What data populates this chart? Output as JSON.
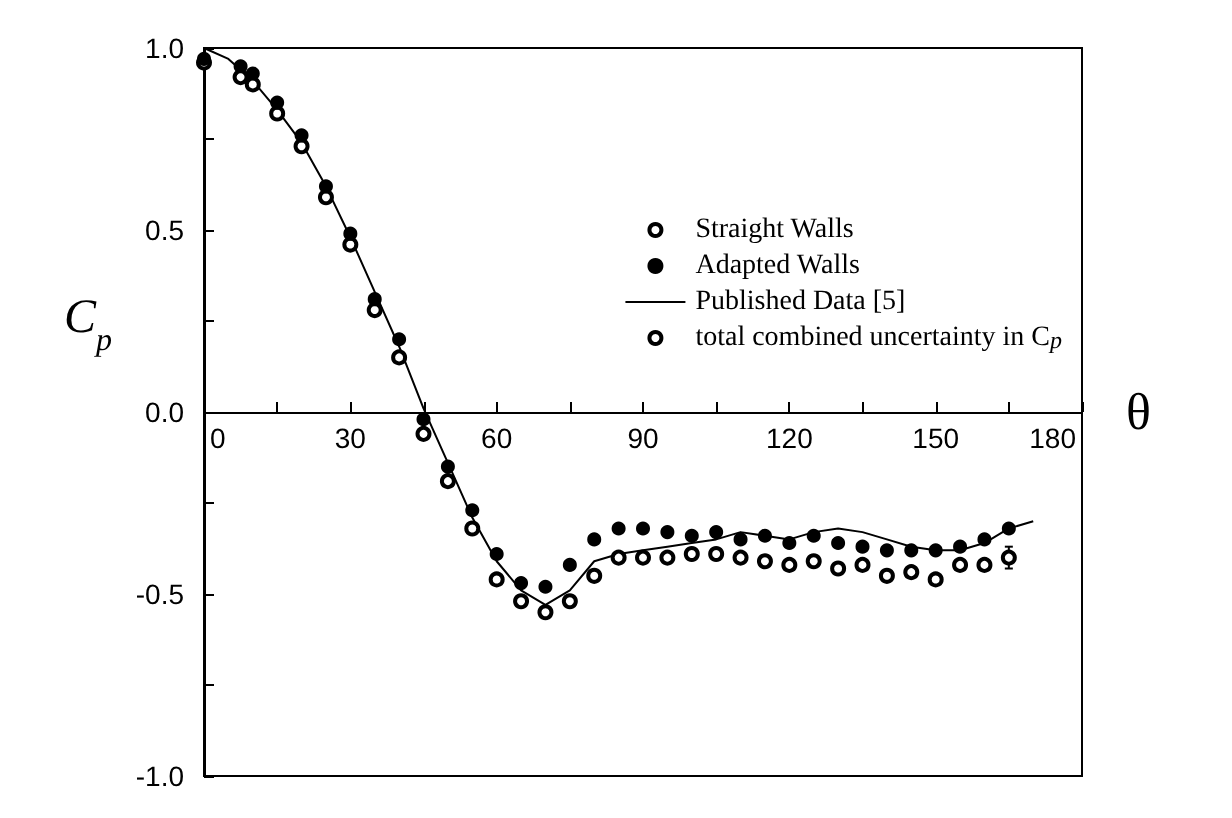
{
  "chart_data": {
    "type": "scatter",
    "xlabel": "θ",
    "ylabel": "C$_{p}$",
    "xlim": [
      0,
      180
    ],
    "ylim": [
      -1,
      1
    ],
    "xticks": [
      0,
      {
        "value": 15,
        "label": null
      },
      30,
      {
        "value": 45,
        "label": null
      },
      60,
      {
        "value": 75,
        "label": null
      },
      90,
      {
        "value": 105,
        "label": null
      },
      120,
      {
        "value": 135,
        "label": null
      },
      150,
      {
        "value": 165,
        "label": null
      },
      180
    ],
    "yticks": [
      {
        "value": -1,
        "label": "-1.0"
      },
      {
        "value": -0.75,
        "label": null
      },
      {
        "value": -0.5,
        "label": "-0.5"
      },
      {
        "value": -0.25,
        "label": null
      },
      {
        "value": 0,
        "label": "0.0"
      },
      {
        "value": 0.25,
        "label": null
      },
      {
        "value": 0.5,
        "label": "0.5"
      },
      {
        "value": 0.75,
        "label": null
      },
      {
        "value": 1,
        "label": "1.0"
      }
    ],
    "grid": false,
    "legend": "top right",
    "series": [
      {
        "name": "Straight Walls",
        "marker": "open circle",
        "color": "#000000",
        "x": [
          0,
          7.5,
          10,
          15,
          20,
          25,
          30,
          35,
          40,
          45,
          50,
          55,
          60,
          65,
          70,
          75,
          80,
          85,
          90,
          95,
          100,
          105,
          110,
          115,
          120,
          125,
          130,
          135,
          140,
          145,
          150,
          155,
          160
        ],
        "values": [
          0.96,
          0.92,
          0.9,
          0.82,
          0.73,
          0.59,
          0.46,
          0.28,
          0.15,
          -0.06,
          -0.19,
          -0.32,
          -0.46,
          -0.52,
          -0.55,
          -0.52,
          -0.45,
          -0.4,
          -0.4,
          -0.4,
          -0.39,
          -0.39,
          -0.4,
          -0.41,
          -0.42,
          -0.41,
          -0.43,
          -0.42,
          -0.45,
          -0.44,
          -0.46,
          -0.42,
          -0.42
        ]
      },
      {
        "name": "Adapted Walls",
        "marker": "circle",
        "color": "#000000",
        "x": [
          0,
          7.5,
          10,
          15,
          20,
          25,
          30,
          35,
          40,
          45,
          50,
          55,
          60,
          65,
          70,
          75,
          80,
          85,
          90,
          95,
          100,
          105,
          110,
          115,
          120,
          125,
          130,
          135,
          140,
          145,
          150,
          155,
          160,
          165
        ],
        "values": [
          0.97,
          0.95,
          0.93,
          0.85,
          0.76,
          0.62,
          0.49,
          0.31,
          0.2,
          -0.02,
          -0.15,
          -0.27,
          -0.39,
          -0.47,
          -0.48,
          -0.42,
          -0.35,
          -0.32,
          -0.32,
          -0.33,
          -0.34,
          -0.33,
          -0.35,
          -0.34,
          -0.36,
          -0.34,
          -0.36,
          -0.37,
          -0.38,
          -0.38,
          -0.38,
          -0.37,
          -0.35,
          -0.32
        ]
      },
      {
        "name": "Published Data [5]",
        "type": "line",
        "marker": "none",
        "line_style": "solid",
        "color": "#000000",
        "x": [
          0,
          5,
          10,
          15,
          20,
          25,
          30,
          35,
          40,
          45,
          50,
          55,
          60,
          65,
          70,
          75,
          80,
          85,
          90,
          95,
          100,
          105,
          110,
          115,
          120,
          125,
          130,
          135,
          140,
          145,
          150,
          155,
          160,
          165,
          170
        ],
        "values": [
          1.0,
          0.97,
          0.91,
          0.83,
          0.74,
          0.62,
          0.48,
          0.33,
          0.18,
          0.01,
          -0.14,
          -0.29,
          -0.41,
          -0.49,
          -0.53,
          -0.49,
          -0.41,
          -0.39,
          -0.38,
          -0.37,
          -0.36,
          -0.35,
          -0.33,
          -0.34,
          -0.35,
          -0.33,
          -0.32,
          -0.33,
          -0.35,
          -0.37,
          -0.38,
          -0.38,
          -0.36,
          -0.32,
          -0.3
        ]
      },
      {
        "name": "total combined uncertainty in C$_{p}$",
        "marker": "open circle",
        "color": "#000000",
        "x": [
          165
        ],
        "values": [
          -0.4
        ],
        "errors": [
          0.03
        ]
      }
    ]
  }
}
